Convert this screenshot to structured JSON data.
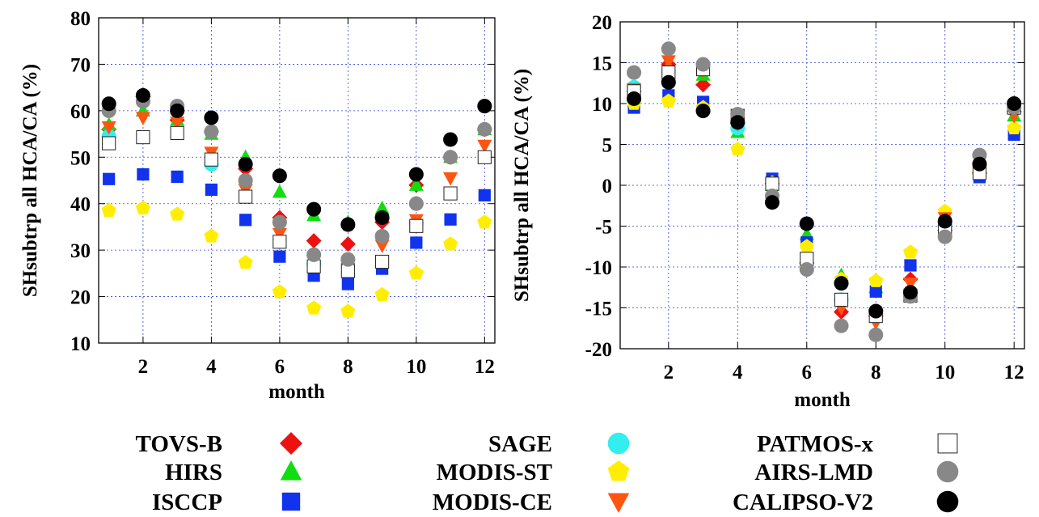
{
  "legend": [
    {
      "name": "TOVS-B",
      "marker": "diamond",
      "color": "#ee1111"
    },
    {
      "name": "SAGE",
      "marker": "circle",
      "color": "#33eeee"
    },
    {
      "name": "PATMOS-x",
      "marker": "open-square",
      "color": "#ffffff"
    },
    {
      "name": "HIRS",
      "marker": "triangle-up",
      "color": "#11dd11"
    },
    {
      "name": "MODIS-ST",
      "marker": "pentagon",
      "color": "#ffee00"
    },
    {
      "name": "AIRS-LMD",
      "marker": "circle",
      "color": "#888888"
    },
    {
      "name": "ISCCP",
      "marker": "square",
      "color": "#1133ee"
    },
    {
      "name": "MODIS-CE",
      "marker": "triangle-down",
      "color": "#ff5511"
    },
    {
      "name": "CALIPSO-V2",
      "marker": "circle",
      "color": "#000000"
    }
  ],
  "chart_data": [
    {
      "type": "scatter",
      "title": "",
      "xlabel": "month",
      "ylabel": "SHsubtrp all HCA/CA (%)",
      "xlim": [
        0.7,
        12.3
      ],
      "ylim": [
        10,
        80
      ],
      "xticks": [
        "2",
        "4",
        "6",
        "8",
        "10",
        "12"
      ],
      "yticks": [
        "10",
        "20",
        "30",
        "40",
        "50",
        "60",
        "70",
        "80"
      ],
      "grid": true,
      "series": [
        {
          "name": "TOVS-B",
          "x": [
            1,
            2,
            3,
            4,
            5,
            6,
            7,
            8,
            9,
            10,
            11,
            12
          ],
          "y": [
            56,
            63,
            58,
            55.5,
            47.5,
            37,
            32,
            31.3,
            36,
            44,
            50,
            56
          ]
        },
        {
          "name": "HIRS",
          "x": [
            1,
            2,
            3,
            4,
            5,
            6,
            7,
            8,
            9,
            10,
            11,
            12
          ],
          "y": [
            57,
            60,
            58,
            55,
            50,
            42.5,
            37.5,
            36,
            39,
            44,
            50,
            56
          ]
        },
        {
          "name": "ISCCP",
          "x": [
            1,
            2,
            3,
            4,
            5,
            6,
            7,
            8,
            9,
            10,
            11,
            12
          ],
          "y": [
            45.3,
            46.3,
            45.8,
            43,
            36.5,
            28.6,
            24.5,
            22.7,
            26,
            31.6,
            36.6,
            41.8
          ]
        },
        {
          "name": "SAGE",
          "x": [
            1,
            4,
            7,
            10
          ],
          "y": [
            54.5,
            48.5,
            27,
            35.8
          ]
        },
        {
          "name": "MODIS-ST",
          "x": [
            1,
            2,
            3,
            4,
            5,
            6,
            7,
            8,
            9,
            10,
            11,
            12
          ],
          "y": [
            38.5,
            39,
            37.7,
            33,
            27.3,
            21,
            17.5,
            16.8,
            20.4,
            25,
            31.3,
            36
          ]
        },
        {
          "name": "MODIS-CE",
          "x": [
            1,
            2,
            3,
            4,
            5,
            6,
            7,
            8,
            9,
            10,
            11,
            12
          ],
          "y": [
            56.5,
            58.5,
            57.5,
            51,
            43,
            33.5,
            27.5,
            26,
            31,
            36.5,
            45.5,
            52.5
          ]
        },
        {
          "name": "PATMOS-x",
          "x": [
            1,
            2,
            3,
            4,
            5,
            6,
            7,
            8,
            9,
            10,
            11,
            12
          ],
          "y": [
            53,
            54.3,
            55.2,
            49.5,
            41.5,
            31.8,
            26.5,
            25.5,
            27.5,
            35.2,
            42.2,
            50
          ]
        },
        {
          "name": "AIRS-LMD",
          "x": [
            1,
            2,
            3,
            4,
            5,
            6,
            7,
            8,
            9,
            10,
            11,
            12
          ],
          "y": [
            60,
            62,
            61,
            55.5,
            45,
            36,
            29,
            28,
            33,
            40,
            50,
            56
          ]
        },
        {
          "name": "CALIPSO-V2",
          "x": [
            1,
            2,
            3,
            4,
            5,
            6,
            7,
            8,
            9,
            10,
            11,
            12
          ],
          "y": [
            61.5,
            63.3,
            60,
            58.5,
            48.5,
            46,
            38.8,
            35.5,
            37,
            46.3,
            53.8,
            61
          ]
        }
      ]
    },
    {
      "type": "scatter",
      "title": "",
      "xlabel": "month",
      "ylabel": "SHsubtrp all HCA/CA (%)",
      "xlim": [
        0.6,
        12.3
      ],
      "ylim": [
        -20,
        20
      ],
      "xticks": [
        "2",
        "4",
        "6",
        "8",
        "10",
        "12"
      ],
      "yticks": [
        "-20",
        "-15",
        "-10",
        "-5",
        "0",
        "5",
        "10",
        "15",
        "20"
      ],
      "grid": true,
      "series": [
        {
          "name": "TOVS-B",
          "x": [
            1,
            2,
            3,
            4,
            5,
            6,
            7,
            8,
            9,
            10,
            11,
            12
          ],
          "y": [
            11.5,
            14.8,
            12.3,
            7.6,
            0.2,
            -9.5,
            -15.5,
            -16,
            -11.5,
            -5.5,
            1.5,
            9
          ]
        },
        {
          "name": "HIRS",
          "x": [
            1,
            2,
            3,
            4,
            5,
            6,
            7,
            8,
            9,
            10,
            11,
            12
          ],
          "y": [
            11,
            14.5,
            13.5,
            6.5,
            0,
            -6,
            -11,
            -12.5,
            -13,
            -5,
            2,
            8.5
          ]
        },
        {
          "name": "ISCCP",
          "x": [
            1,
            2,
            3,
            4,
            5,
            6,
            7,
            8,
            9,
            10,
            11,
            12
          ],
          "y": [
            9.5,
            11,
            10.2,
            7.8,
            0.8,
            -7,
            -14,
            -13,
            -9.8,
            -5.5,
            1,
            6.2
          ]
        },
        {
          "name": "SAGE",
          "x": [
            1,
            4,
            7,
            10
          ],
          "y": [
            12,
            7,
            -14,
            -5
          ]
        },
        {
          "name": "MODIS-ST",
          "x": [
            1,
            2,
            3,
            4,
            5,
            6,
            7,
            8,
            9,
            10,
            11,
            12
          ],
          "y": [
            10,
            10.3,
            9.5,
            4.4,
            0.3,
            -7.5,
            -11.5,
            -11.7,
            -8.2,
            -3.2,
            2.1,
            7
          ]
        },
        {
          "name": "MODIS-CE",
          "x": [
            1,
            2,
            3,
            4,
            5,
            6,
            7,
            8,
            9,
            10,
            11,
            12
          ],
          "y": [
            11.8,
            15.2,
            14,
            7.5,
            0.1,
            -9,
            -15,
            -16.8,
            -12,
            -4,
            2,
            8.5
          ]
        },
        {
          "name": "PATMOS-x",
          "x": [
            1,
            2,
            3,
            4,
            5,
            6,
            7,
            8,
            9,
            10,
            11,
            12
          ],
          "y": [
            11.5,
            13.8,
            14.2,
            8.5,
            0.2,
            -9,
            -14,
            -16,
            -13.5,
            -5.5,
            1.5,
            9.5
          ]
        },
        {
          "name": "AIRS-LMD",
          "x": [
            1,
            2,
            3,
            4,
            5,
            6,
            7,
            8,
            9,
            10,
            11,
            12
          ],
          "y": [
            13.8,
            16.7,
            14.8,
            8.7,
            -1.3,
            -10.3,
            -17.2,
            -18.3,
            -13.6,
            -6.3,
            3.7,
            9.5
          ]
        },
        {
          "name": "CALIPSO-V2",
          "x": [
            1,
            2,
            3,
            4,
            5,
            6,
            7,
            8,
            9,
            10,
            11,
            12
          ],
          "y": [
            10.6,
            12.6,
            9.1,
            7.7,
            -2.1,
            -4.7,
            -12,
            -15.4,
            -13.1,
            -4.4,
            2.6,
            10
          ]
        }
      ]
    }
  ]
}
